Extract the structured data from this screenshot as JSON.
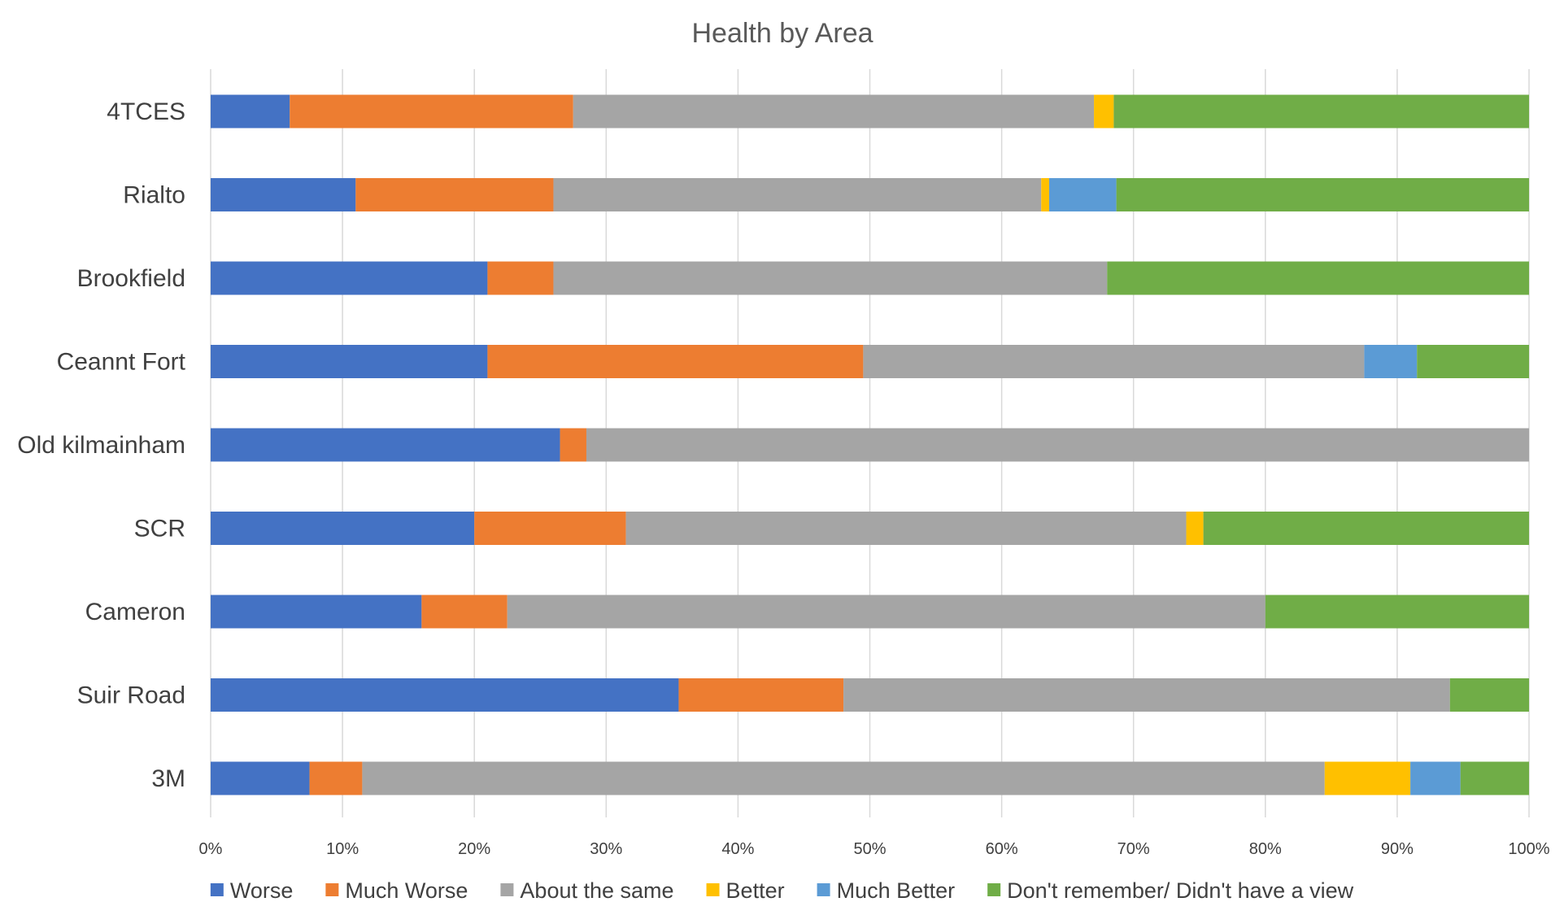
{
  "chart_data": {
    "type": "bar",
    "orientation": "horizontal",
    "stacked": "percent",
    "title": "Health by Area",
    "xlabel": "",
    "ylabel": "",
    "xlim": [
      0,
      100
    ],
    "x_ticks": [
      "0%",
      "10%",
      "20%",
      "30%",
      "40%",
      "50%",
      "60%",
      "70%",
      "80%",
      "90%",
      "100%"
    ],
    "grid": "vertical",
    "legend_position": "bottom",
    "categories": [
      "4TCES",
      "Rialto",
      "Brookfield",
      "Ceannt Fort",
      "Old kilmainham",
      "SCR",
      "Cameron",
      "Suir Road",
      "3M"
    ],
    "series": [
      {
        "name": "Worse",
        "color": "#4472C4",
        "values": [
          6,
          11,
          21,
          21,
          26.5,
          20,
          16,
          35.5,
          7.5
        ]
      },
      {
        "name": "Much Worse",
        "color": "#ED7D31",
        "values": [
          21.5,
          15,
          5,
          28.5,
          2,
          11.5,
          6.5,
          12.5,
          4
        ]
      },
      {
        "name": "About the same",
        "color": "#A5A5A5",
        "values": [
          39.5,
          37,
          42,
          38,
          71.5,
          42.5,
          57.5,
          46,
          73
        ]
      },
      {
        "name": "Better",
        "color": "#FFC000",
        "values": [
          1.5,
          0.6,
          0,
          0,
          0,
          1.3,
          0,
          0,
          6.5
        ]
      },
      {
        "name": "Much Better",
        "color": "#5B9BD5",
        "values": [
          0,
          5.1,
          0,
          4,
          0,
          0,
          0,
          0,
          3.8
        ]
      },
      {
        "name": "Don't remember/ Didn't have a view",
        "color": "#70AD47",
        "values": [
          31.5,
          31.3,
          32,
          8.5,
          0,
          24.7,
          20,
          6,
          5.2
        ]
      }
    ]
  }
}
